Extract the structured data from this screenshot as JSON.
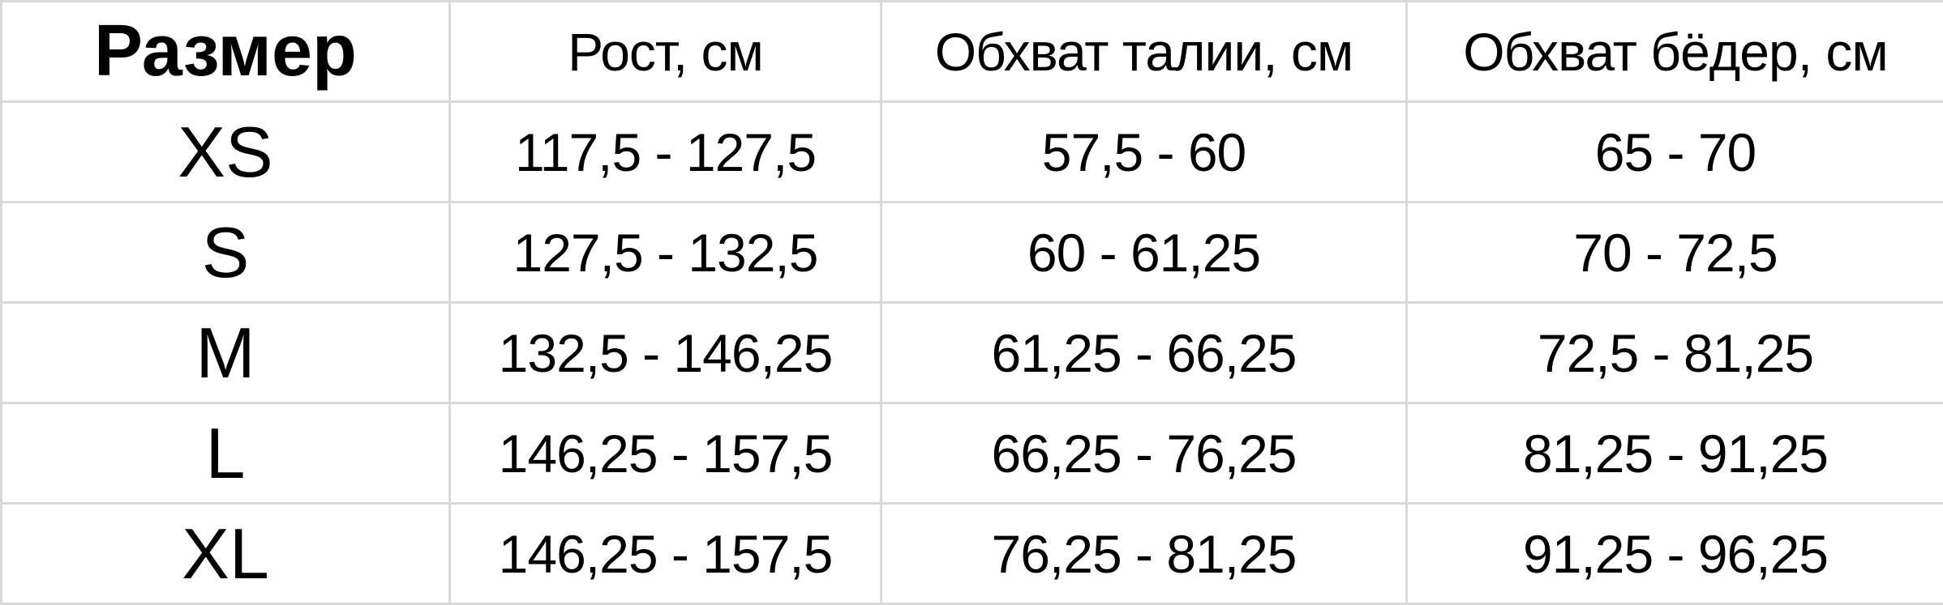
{
  "table": {
    "headers": [
      "Размер",
      "Рост, см",
      "Обхват талии, см",
      "Обхват бёдер, см"
    ],
    "rows": [
      [
        "XS",
        "117,5 - 127,5",
        "57,5 - 60",
        "65 - 70"
      ],
      [
        "S",
        "127,5 - 132,5",
        "60 - 61,25",
        "70 - 72,5"
      ],
      [
        "M",
        "132,5 - 146,25",
        "61,25 - 66,25",
        "72,5 - 81,25"
      ],
      [
        "L",
        "146,25 - 157,5",
        "66,25 - 76,25",
        "81,25 - 91,25"
      ],
      [
        "XL",
        "146,25 - 157,5",
        "76,25 - 81,25",
        "91,25 - 96,25"
      ]
    ]
  },
  "colors": {
    "grid": "#d9d9d9",
    "text": "#000000"
  }
}
